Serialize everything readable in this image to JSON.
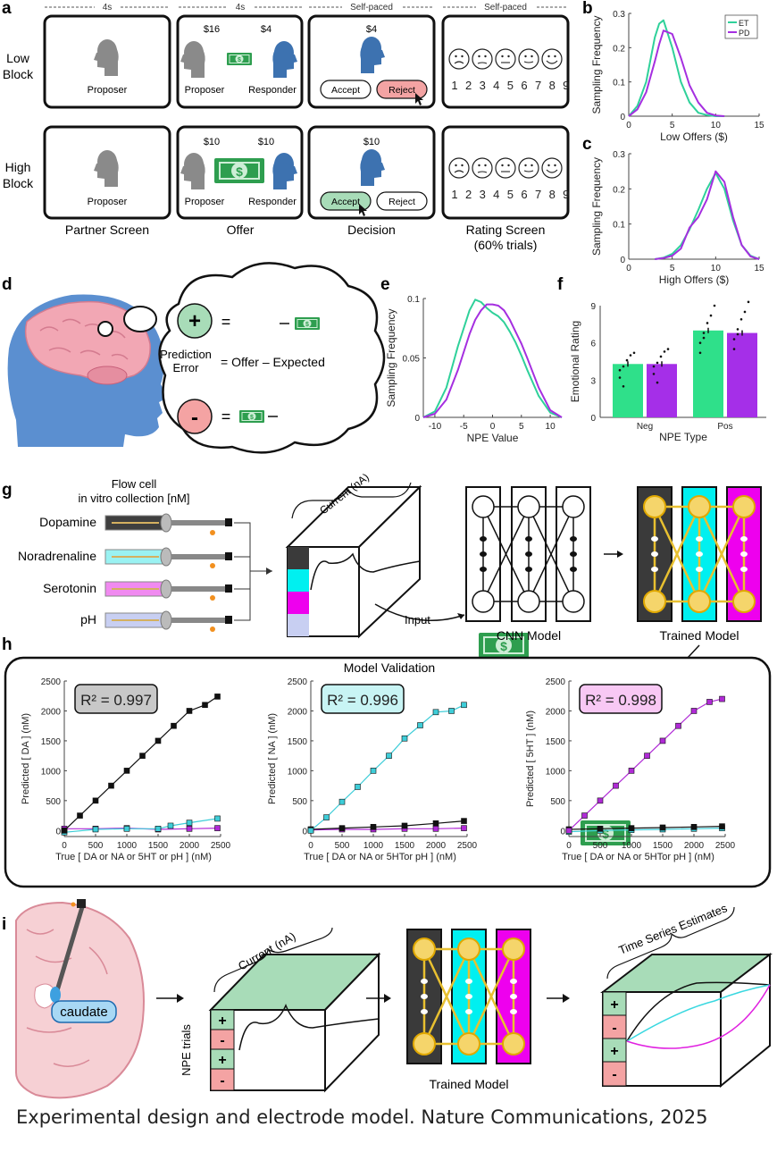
{
  "caption": "Experimental design and electrode model. Nature Communications, 2025",
  "panel_letters": [
    "a",
    "b",
    "c",
    "d",
    "e",
    "f",
    "g",
    "h",
    "i"
  ],
  "panel_a": {
    "timings": [
      "4s",
      "4s",
      "Self-paced",
      "Self-paced"
    ],
    "row_labels": [
      [
        "Low",
        "Block"
      ],
      [
        "High",
        "Block"
      ]
    ],
    "screen_labels": [
      "Partner Screen",
      "Offer",
      "Decision",
      "Rating Screen",
      "(60% trials)"
    ],
    "proposer": "Proposer",
    "responder": "Responder",
    "low_offer": {
      "proposer_amount": "$16",
      "responder_amount": "$4",
      "decision_amount": "$4"
    },
    "high_offer": {
      "proposer_amount": "$10",
      "responder_amount": "$10",
      "decision_amount": "$10"
    },
    "accept": "Accept",
    "reject": "Reject",
    "rating_numbers": [
      "1",
      "2",
      "3",
      "4",
      "5",
      "6",
      "7",
      "8",
      "9"
    ],
    "colors": {
      "proposer": "#8a8a8a",
      "responder": "#3d72b0",
      "reject": "#f3a3a3",
      "accept": "#a8dcb8",
      "money": "#2e9e4f"
    }
  },
  "panel_b": {
    "ylabel": "Sampling Frequency",
    "xlabel": "Low Offers ($)",
    "yticks": [
      "0",
      "0.1",
      "0.2",
      "0.3"
    ],
    "xticks": [
      "0",
      "5",
      "10",
      "15"
    ],
    "legend": [
      "ET",
      "PD"
    ]
  },
  "panel_c": {
    "ylabel": "Sampling Frequency",
    "xlabel": "High Offers ($)",
    "yticks": [
      "0",
      "0.1",
      "0.2",
      "0.3"
    ],
    "xticks": [
      "0",
      "5",
      "10",
      "15"
    ]
  },
  "panel_d": {
    "plus": "+",
    "minus": "-",
    "eq": "=",
    "equation": [
      "Prediction",
      "Error",
      "= Offer – Expected"
    ]
  },
  "panel_e": {
    "ylabel": "Sampling Frequency",
    "xlabel": "NPE Value",
    "yticks": [
      "0",
      "0.05",
      "0.1"
    ],
    "xticks": [
      "-10",
      "-5",
      "0",
      "5",
      "10"
    ]
  },
  "panel_f": {
    "ylabel": "Emotional Rating",
    "xlabel": "NPE Type",
    "yticks": [
      "0",
      "3",
      "6",
      "9"
    ],
    "categories": [
      "Neg",
      "Pos"
    ]
  },
  "panel_g": {
    "title": [
      "Flow cell",
      "in vitro collection [nM]"
    ],
    "analytes": [
      "Dopamine",
      "Noradrenaline",
      "Serotonin",
      "pH"
    ],
    "current": "Current (nA)",
    "input": "Input",
    "cnn": "CNN Model",
    "trained": "Trained Model"
  },
  "panel_h": {
    "title": "Model Validation",
    "plots": [
      {
        "r2": "R² = 0.997",
        "ylabel": "Predicted [ DA ] (nM)",
        "xlabel": "True [ DA or NA or 5HT or pH ] (nM)",
        "badge_color": "#c8c8c8"
      },
      {
        "r2": "R² = 0.996",
        "ylabel": "Predicted [ NA ] (nM)",
        "xlabel": "True [ DA or NA or 5HTor pH ] (nM)",
        "badge_color": "#c8f4f4"
      },
      {
        "r2": "R² = 0.998",
        "ylabel": "Predicted [ 5HT ] (nM)",
        "xlabel": "True [ DA or NA or 5HTor pH ] (nM)",
        "badge_color": "#f8c8f4"
      }
    ],
    "yticks": [
      "0",
      "500",
      "1000",
      "1500",
      "2000",
      "2500"
    ],
    "xticks": [
      "0",
      "500",
      "1000",
      "1500",
      "2000",
      "2500"
    ]
  },
  "panel_i": {
    "caudate": "caudate",
    "current": "Current (nA)",
    "npe_trials": "NPE trials",
    "trained": "Trained Model",
    "estimates": "Time Series Estimates",
    "trial_signs": [
      "+",
      "-",
      "+",
      "-"
    ]
  },
  "chart_data": [
    {
      "type": "line",
      "id": "b",
      "xlabel": "Low Offers ($)",
      "ylabel": "Sampling Frequency",
      "xlim": [
        0,
        15
      ],
      "ylim": [
        0,
        0.3
      ],
      "x": [
        0,
        1,
        2,
        3,
        3.5,
        4,
        5,
        6,
        7,
        8,
        9,
        10,
        11
      ],
      "series": [
        {
          "name": "ET",
          "color": "#2fd19a",
          "values": [
            0,
            0.03,
            0.1,
            0.23,
            0.27,
            0.28,
            0.2,
            0.1,
            0.04,
            0.01,
            0.003,
            0,
            0
          ]
        },
        {
          "name": "PD",
          "color": "#a52fe0",
          "values": [
            0,
            0.02,
            0.07,
            0.16,
            0.21,
            0.25,
            0.24,
            0.17,
            0.09,
            0.04,
            0.01,
            0.002,
            0
          ]
        }
      ]
    },
    {
      "type": "line",
      "id": "c",
      "xlabel": "High Offers ($)",
      "ylabel": "Sampling Frequency",
      "xlim": [
        0,
        15
      ],
      "ylim": [
        0,
        0.3
      ],
      "x": [
        3,
        4,
        5,
        6,
        7,
        8,
        9,
        10,
        11,
        12,
        13,
        14,
        15
      ],
      "series": [
        {
          "name": "ET",
          "color": "#2fd19a",
          "values": [
            0,
            0.004,
            0.015,
            0.04,
            0.085,
            0.14,
            0.2,
            0.245,
            0.2,
            0.11,
            0.04,
            0.01,
            0
          ]
        },
        {
          "name": "PD",
          "color": "#a52fe0",
          "values": [
            0,
            0.003,
            0.01,
            0.03,
            0.09,
            0.12,
            0.17,
            0.25,
            0.22,
            0.12,
            0.04,
            0.008,
            0
          ]
        }
      ]
    },
    {
      "type": "line",
      "id": "e",
      "xlabel": "NPE Value",
      "ylabel": "Sampling Frequency",
      "xlim": [
        -12,
        12
      ],
      "ylim": [
        0,
        0.1
      ],
      "x": [
        -12,
        -10,
        -8,
        -6,
        -4,
        -3,
        -2,
        -1,
        0,
        1,
        2,
        3,
        4,
        5,
        6,
        8,
        10,
        12
      ],
      "series": [
        {
          "name": "ET",
          "color": "#2fd19a",
          "values": [
            0,
            0.005,
            0.025,
            0.06,
            0.09,
            0.099,
            0.097,
            0.092,
            0.088,
            0.085,
            0.08,
            0.072,
            0.063,
            0.052,
            0.04,
            0.018,
            0.004,
            0
          ]
        },
        {
          "name": "PD",
          "color": "#a52fe0",
          "values": [
            0,
            0.003,
            0.015,
            0.04,
            0.07,
            0.082,
            0.09,
            0.095,
            0.095,
            0.094,
            0.09,
            0.082,
            0.072,
            0.062,
            0.05,
            0.025,
            0.006,
            0
          ]
        }
      ]
    },
    {
      "type": "bar",
      "id": "f",
      "xlabel": "NPE Type",
      "ylabel": "Emotional Rating",
      "categories": [
        "Neg",
        "Pos"
      ],
      "ylim": [
        0,
        9
      ],
      "series": [
        {
          "name": "ET",
          "color": "#2fe08a",
          "values": [
            4.3,
            7.0
          ]
        },
        {
          "name": "PD",
          "color": "#a52fe8",
          "values": [
            4.3,
            6.8
          ]
        }
      ]
    },
    {
      "type": "scatter",
      "id": "h1",
      "xlabel": "True [ DA or NA or 5HT or pH ] (nM)",
      "ylabel": "Predicted [ DA ] (nM)",
      "xlim": [
        0,
        2500
      ],
      "ylim": [
        0,
        2500
      ],
      "annotation": "R² = 0.997",
      "series": [
        {
          "name": "DA",
          "color": "#111111",
          "x": [
            0,
            250,
            500,
            750,
            1000,
            1250,
            1500,
            1750,
            2000,
            2250,
            2450
          ],
          "values": [
            0,
            250,
            500,
            750,
            1000,
            1250,
            1500,
            1750,
            2000,
            2100,
            2240
          ]
        },
        {
          "name": "NA",
          "color": "#3ecdd8",
          "x": [
            0,
            500,
            1000,
            1500,
            1700,
            2000,
            2450
          ],
          "values": [
            -30,
            20,
            30,
            30,
            80,
            130,
            200
          ]
        },
        {
          "name": "5HT",
          "color": "#b02ad6",
          "x": [
            0,
            500,
            1000,
            1500,
            2000,
            2450
          ],
          "values": [
            30,
            30,
            40,
            20,
            30,
            40
          ]
        }
      ]
    },
    {
      "type": "scatter",
      "id": "h2",
      "xlabel": "True [ DA or NA or 5HTor pH ] (nM)",
      "ylabel": "Predicted [ NA ] (nM)",
      "xlim": [
        0,
        2500
      ],
      "ylim": [
        0,
        2500
      ],
      "annotation": "R² = 0.996",
      "series": [
        {
          "name": "NA",
          "color": "#3ecdd8",
          "x": [
            0,
            250,
            500,
            750,
            1000,
            1250,
            1500,
            1750,
            2000,
            2250,
            2450
          ],
          "values": [
            0,
            220,
            480,
            730,
            1000,
            1250,
            1540,
            1760,
            1980,
            2000,
            2100
          ]
        },
        {
          "name": "DA",
          "color": "#111111",
          "x": [
            0,
            500,
            1000,
            1500,
            2000,
            2450
          ],
          "values": [
            20,
            40,
            60,
            80,
            120,
            160
          ]
        },
        {
          "name": "5HT",
          "color": "#b02ad6",
          "x": [
            0,
            500,
            1000,
            1500,
            2000,
            2450
          ],
          "values": [
            10,
            20,
            20,
            30,
            30,
            40
          ]
        }
      ]
    },
    {
      "type": "scatter",
      "id": "h3",
      "xlabel": "True [ DA or NA or 5HTor pH ] (nM)",
      "ylabel": "Predicted [ 5HT ] (nM)",
      "xlim": [
        0,
        2500
      ],
      "ylim": [
        0,
        2500
      ],
      "annotation": "R² = 0.998",
      "series": [
        {
          "name": "5HT",
          "color": "#b02ad6",
          "x": [
            0,
            250,
            500,
            750,
            1000,
            1250,
            1500,
            1750,
            2000,
            2250,
            2450
          ],
          "values": [
            0,
            250,
            500,
            750,
            1000,
            1250,
            1500,
            1750,
            2000,
            2150,
            2200
          ]
        },
        {
          "name": "DA",
          "color": "#111111",
          "x": [
            0,
            500,
            1000,
            1500,
            2000,
            2450
          ],
          "values": [
            20,
            30,
            40,
            50,
            60,
            70
          ]
        },
        {
          "name": "NA",
          "color": "#3ecdd8",
          "x": [
            0,
            500,
            1000,
            1500,
            2000,
            2450
          ],
          "values": [
            -20,
            0,
            10,
            20,
            30,
            40
          ]
        }
      ]
    }
  ]
}
